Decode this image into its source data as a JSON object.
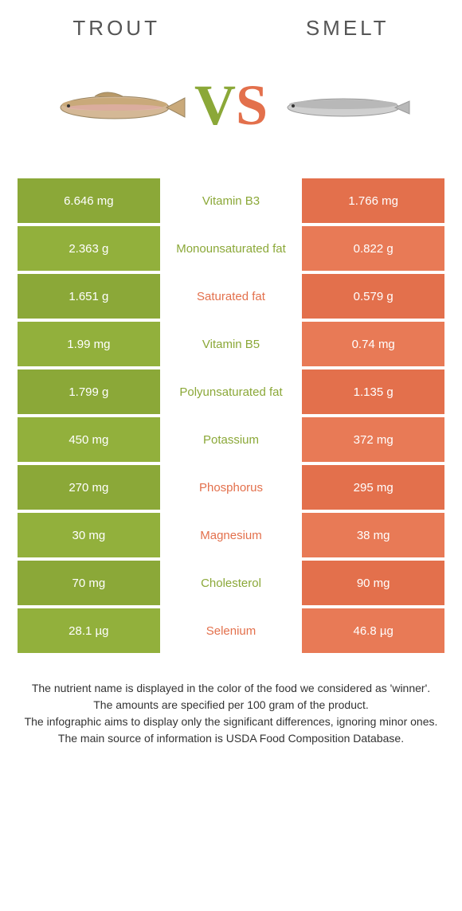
{
  "header": {
    "left_label": "Trout",
    "right_label": "Smelt"
  },
  "vs": {
    "v": "V",
    "s": "S"
  },
  "colors": {
    "left_bg": "#8ba838",
    "left_bg_alt": "#92b03c",
    "right_bg": "#e3704c",
    "right_bg_alt": "#e87a56",
    "winner_left": "#8ba838",
    "winner_right": "#e3704c"
  },
  "rows": [
    {
      "left": "6.646 mg",
      "label": "Vitamin B3",
      "right": "1.766 mg",
      "winner": "left"
    },
    {
      "left": "2.363 g",
      "label": "Monounsaturated fat",
      "right": "0.822 g",
      "winner": "left"
    },
    {
      "left": "1.651 g",
      "label": "Saturated fat",
      "right": "0.579 g",
      "winner": "right"
    },
    {
      "left": "1.99 mg",
      "label": "Vitamin B5",
      "right": "0.74 mg",
      "winner": "left"
    },
    {
      "left": "1.799 g",
      "label": "Polyunsaturated fat",
      "right": "1.135 g",
      "winner": "left"
    },
    {
      "left": "450 mg",
      "label": "Potassium",
      "right": "372 mg",
      "winner": "left"
    },
    {
      "left": "270 mg",
      "label": "Phosphorus",
      "right": "295 mg",
      "winner": "right"
    },
    {
      "left": "30 mg",
      "label": "Magnesium",
      "right": "38 mg",
      "winner": "right"
    },
    {
      "left": "70 mg",
      "label": "Cholesterol",
      "right": "90 mg",
      "winner": "left"
    },
    {
      "left": "28.1 µg",
      "label": "Selenium",
      "right": "46.8 µg",
      "winner": "right"
    }
  ],
  "footnotes": [
    "The nutrient name is displayed in the color of the food we considered as 'winner'.",
    "The amounts are specified per 100 gram of the product.",
    "The infographic aims to display only the significant differences, ignoring minor ones.",
    "The main source of information is USDA Food Composition Database."
  ]
}
